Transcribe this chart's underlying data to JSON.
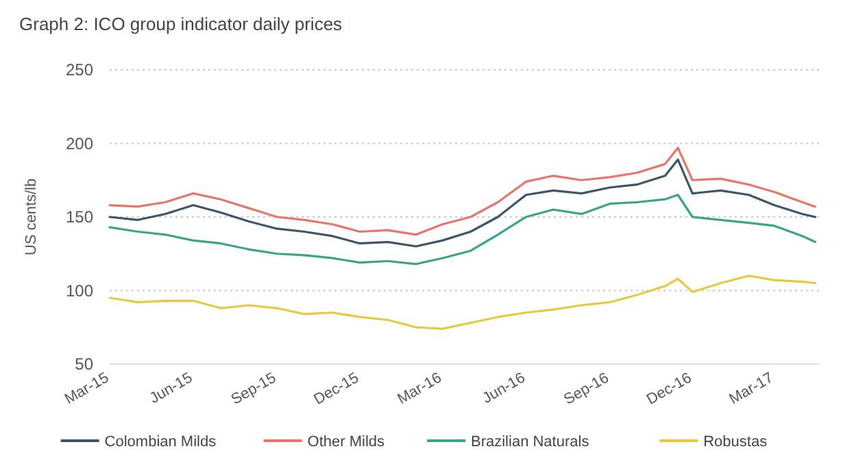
{
  "chart_data": {
    "type": "line",
    "title": "Graph 2: ICO group indicator daily prices",
    "ylabel": "US cents/lb",
    "x": [
      "2015-03-01",
      "2015-04-01",
      "2015-05-01",
      "2015-06-01",
      "2015-07-01",
      "2015-08-01",
      "2015-09-01",
      "2015-10-01",
      "2015-11-01",
      "2015-12-01",
      "2016-01-01",
      "2016-02-01",
      "2016-03-01",
      "2016-04-01",
      "2016-05-01",
      "2016-06-01",
      "2016-07-01",
      "2016-08-01",
      "2016-09-01",
      "2016-10-01",
      "2016-11-01",
      "2016-11-15",
      "2016-12-01",
      "2017-01-01",
      "2017-02-01",
      "2017-03-01",
      "2017-04-01",
      "2017-04-15"
    ],
    "series": [
      {
        "name": "Colombian Milds",
        "color": "#3e5566",
        "values": [
          150,
          148,
          152,
          158,
          153,
          147,
          142,
          140,
          137,
          132,
          133,
          130,
          134,
          140,
          150,
          165,
          168,
          166,
          170,
          172,
          178,
          189,
          166,
          168,
          165,
          158,
          152,
          150
        ]
      },
      {
        "name": "Other Milds",
        "color": "#e8746a",
        "values": [
          158,
          157,
          160,
          166,
          162,
          156,
          150,
          148,
          145,
          140,
          141,
          138,
          145,
          150,
          160,
          174,
          178,
          175,
          177,
          180,
          186,
          197,
          175,
          176,
          172,
          167,
          160,
          157
        ]
      },
      {
        "name": "Brazilian Naturals",
        "color": "#3aa585",
        "values": [
          143,
          140,
          138,
          134,
          132,
          128,
          125,
          124,
          122,
          119,
          120,
          118,
          122,
          127,
          138,
          150,
          155,
          152,
          159,
          160,
          162,
          165,
          150,
          148,
          146,
          144,
          137,
          133
        ]
      },
      {
        "name": "Robustas",
        "color": "#e8c840",
        "values": [
          95,
          92,
          93,
          93,
          88,
          90,
          88,
          84,
          85,
          82,
          80,
          75,
          74,
          78,
          82,
          85,
          87,
          90,
          92,
          97,
          103,
          108,
          99,
          105,
          110,
          107,
          106,
          105
        ]
      }
    ],
    "xlim": [
      "2015-03-01",
      "2017-04-20"
    ],
    "xticks": [
      {
        "value": "2015-03-01",
        "label": "Mar-15"
      },
      {
        "value": "2015-06-01",
        "label": "Jun-15"
      },
      {
        "value": "2015-09-01",
        "label": "Sep-15"
      },
      {
        "value": "2015-12-01",
        "label": "Dec-15"
      },
      {
        "value": "2016-03-01",
        "label": "Mar-16"
      },
      {
        "value": "2016-06-01",
        "label": "Jun-16"
      },
      {
        "value": "2016-09-01",
        "label": "Sep-16"
      },
      {
        "value": "2016-12-01",
        "label": "Dec-16"
      },
      {
        "value": "2017-03-01",
        "label": "Mar-17"
      }
    ],
    "ylim": [
      50,
      250
    ],
    "yticks": [
      50,
      100,
      150,
      200,
      250
    ],
    "grid": "y",
    "legend": "bottom",
    "marker": "none",
    "line_style": "solid"
  }
}
